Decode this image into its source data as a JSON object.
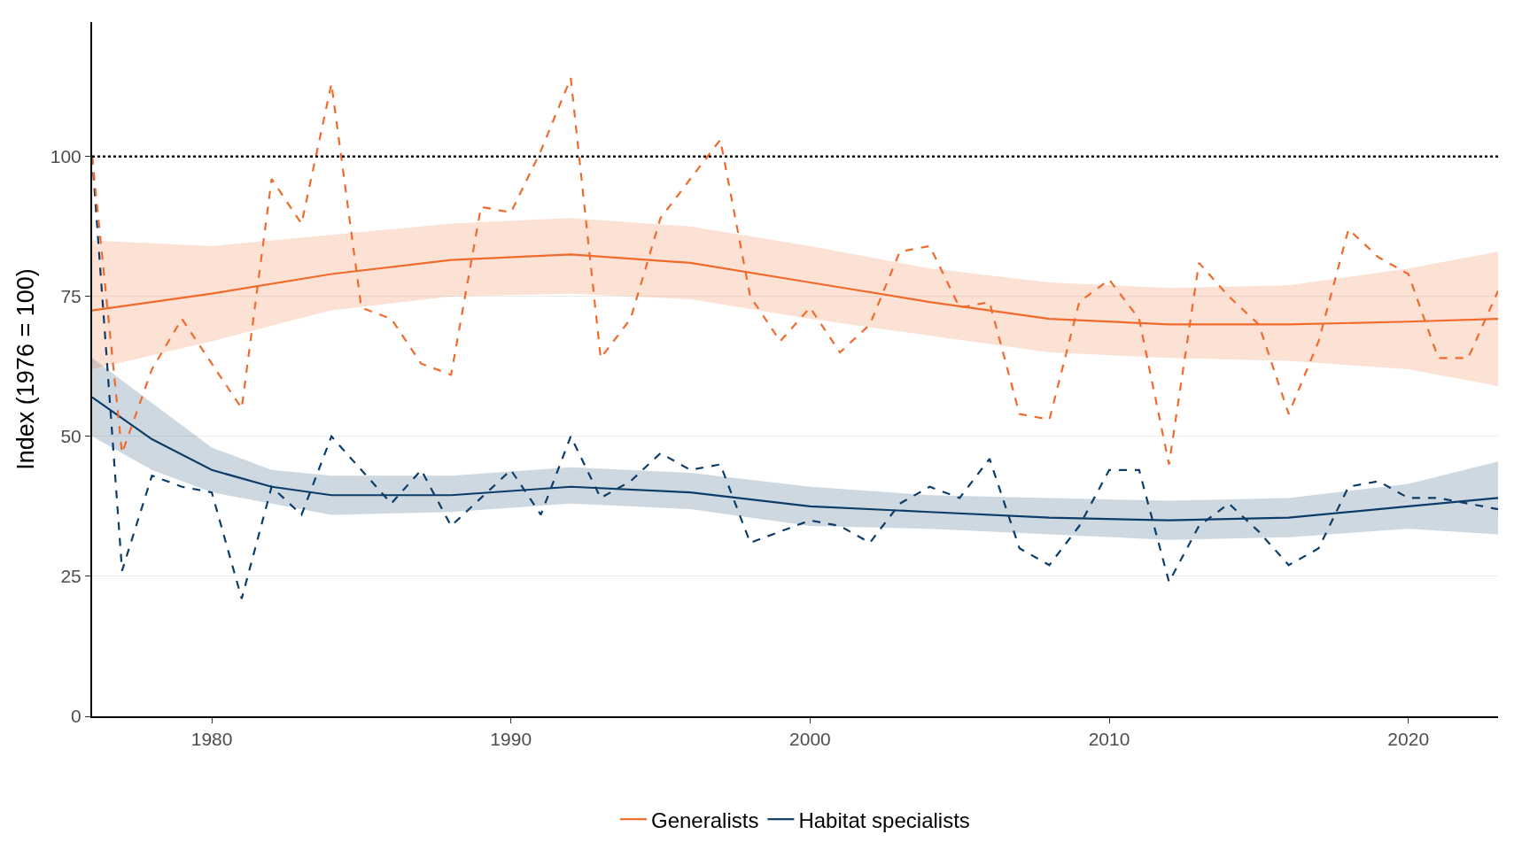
{
  "chart_data": {
    "type": "line",
    "ylabel": "Index (1976 = 100)",
    "xlim": [
      1976,
      2023
    ],
    "xticks": [
      1980,
      1990,
      2000,
      2010,
      2020
    ],
    "ylim": [
      0,
      124
    ],
    "yticks": [
      0,
      25,
      50,
      75,
      100
    ],
    "grid": "y",
    "legend": "bottom",
    "ref_lines": [
      {
        "axis": "y",
        "value": 100,
        "color": "#000000",
        "line_style": "dotted"
      }
    ],
    "series": [
      {
        "name": "Habitat specialists",
        "color": "#0c3c68",
        "line_style": "solid",
        "x": [
          1976,
          1978,
          1980,
          1982,
          1984,
          1988,
          1992,
          1996,
          2000,
          2004,
          2008,
          2012,
          2016,
          2020,
          2023
        ],
        "values": [
          57,
          49.5,
          44,
          41,
          39.5,
          39.5,
          41,
          40,
          37.5,
          36.5,
          35.5,
          35,
          35.5,
          37.5,
          39
        ],
        "lower": [
          50,
          44,
          40,
          38,
          36,
          36.5,
          38,
          37,
          34,
          33.5,
          32.5,
          31.5,
          32,
          33.5,
          32.5
        ],
        "upper": [
          64,
          56,
          48,
          44,
          43,
          43,
          44.5,
          43.5,
          41,
          39.5,
          39,
          38.5,
          39,
          41.5,
          45.5
        ]
      },
      {
        "name": "Generalists",
        "color": "#f26a2b",
        "line_style": "solid",
        "x": [
          1976,
          1980,
          1984,
          1988,
          1992,
          1996,
          2000,
          2004,
          2008,
          2012,
          2016,
          2020,
          2023
        ],
        "values": [
          72.5,
          75.5,
          79,
          81.5,
          82.5,
          81,
          77.5,
          74,
          71,
          70,
          70,
          70.5,
          71
        ],
        "lower": [
          62,
          67,
          72.5,
          75,
          75.5,
          74.5,
          71,
          68,
          65,
          64,
          63.5,
          62,
          59
        ],
        "upper": [
          85,
          84,
          86,
          88,
          89,
          87.5,
          84,
          80,
          77.5,
          76.5,
          77,
          80,
          83
        ]
      },
      {
        "color": "#0c3c68",
        "line_style": "dashed",
        "x": [
          1976,
          1977,
          1978,
          1979,
          1980,
          1981,
          1982,
          1983,
          1984,
          1985,
          1986,
          1987,
          1988,
          1989,
          1990,
          1991,
          1992,
          1993,
          1994,
          1995,
          1996,
          1997,
          1998,
          1999,
          2000,
          2001,
          2002,
          2003,
          2004,
          2005,
          2006,
          2007,
          2008,
          2009,
          2010,
          2011,
          2012,
          2013,
          2014,
          2015,
          2016,
          2017,
          2018,
          2019,
          2020,
          2021,
          2022,
          2023
        ],
        "values": [
          100,
          26,
          43,
          41,
          40,
          21,
          41,
          36,
          50,
          44,
          38,
          44,
          34,
          39,
          44,
          36,
          50,
          39,
          42,
          47,
          44,
          45,
          31,
          33,
          35,
          34,
          31,
          38,
          41,
          39,
          46,
          30,
          27,
          34,
          44,
          44,
          24,
          34,
          38,
          33,
          27,
          30,
          41,
          42,
          39,
          39,
          38,
          37
        ]
      },
      {
        "color": "#f26a2b",
        "line_style": "dashed",
        "x": [
          1976,
          1977,
          1978,
          1979,
          1980,
          1981,
          1982,
          1983,
          1984,
          1985,
          1986,
          1987,
          1988,
          1989,
          1990,
          1991,
          1992,
          1993,
          1994,
          1995,
          1996,
          1997,
          1998,
          1999,
          2000,
          2001,
          2002,
          2003,
          2004,
          2005,
          2006,
          2007,
          2008,
          2009,
          2010,
          2011,
          2012,
          2013,
          2014,
          2015,
          2016,
          2017,
          2018,
          2019,
          2020,
          2021,
          2022,
          2023
        ],
        "values": [
          100,
          47,
          62,
          71,
          63,
          55,
          96,
          88,
          113,
          73,
          71,
          63,
          61,
          91,
          90,
          101,
          114,
          64,
          71,
          89,
          96,
          103,
          75,
          67,
          73,
          65,
          70,
          83,
          84,
          73,
          74,
          54,
          53,
          74,
          78,
          71,
          45,
          81,
          75,
          70,
          54,
          67,
          87,
          82,
          79,
          64,
          64,
          76
        ]
      }
    ]
  }
}
